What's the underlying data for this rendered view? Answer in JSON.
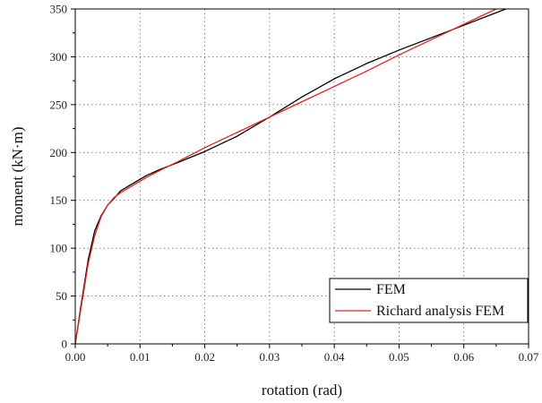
{
  "chart_data": {
    "type": "line",
    "xlabel": "rotation (rad)",
    "ylabel": "moment (kN·m)",
    "xlim": [
      0.0,
      0.07
    ],
    "ylim": [
      0,
      350
    ],
    "xticks": [
      "0.00",
      "0.01",
      "0.02",
      "0.03",
      "0.04",
      "0.05",
      "0.06",
      "0.07"
    ],
    "yticks": [
      "0",
      "50",
      "100",
      "150",
      "200",
      "250",
      "300",
      "350"
    ],
    "grid": true,
    "legend_position": "bottom-right",
    "series": [
      {
        "name": "FEM",
        "color": "#000000",
        "x": [
          0.0,
          0.001,
          0.002,
          0.003,
          0.004,
          0.005,
          0.006,
          0.007,
          0.009,
          0.011,
          0.013,
          0.016,
          0.02,
          0.025,
          0.03,
          0.035,
          0.04,
          0.045,
          0.05,
          0.055,
          0.06,
          0.0665
        ],
        "y": [
          0,
          45,
          88,
          118,
          134,
          145,
          152,
          160,
          168,
          176,
          182,
          190,
          201,
          217,
          237,
          258,
          277,
          293,
          307,
          320,
          333,
          350
        ]
      },
      {
        "name": "Richard analysis FEM",
        "color": "#e8211b",
        "x": [
          0.0,
          0.001,
          0.002,
          0.003,
          0.004,
          0.005,
          0.006,
          0.007,
          0.009,
          0.011,
          0.013,
          0.016,
          0.02,
          0.025,
          0.03,
          0.035,
          0.04,
          0.045,
          0.05,
          0.055,
          0.06,
          0.065
        ],
        "y": [
          0,
          42,
          84,
          113,
          133,
          145,
          153,
          158,
          166,
          174,
          181,
          191,
          205,
          221,
          237,
          253,
          269,
          285,
          302,
          318,
          334,
          350
        ]
      }
    ]
  }
}
